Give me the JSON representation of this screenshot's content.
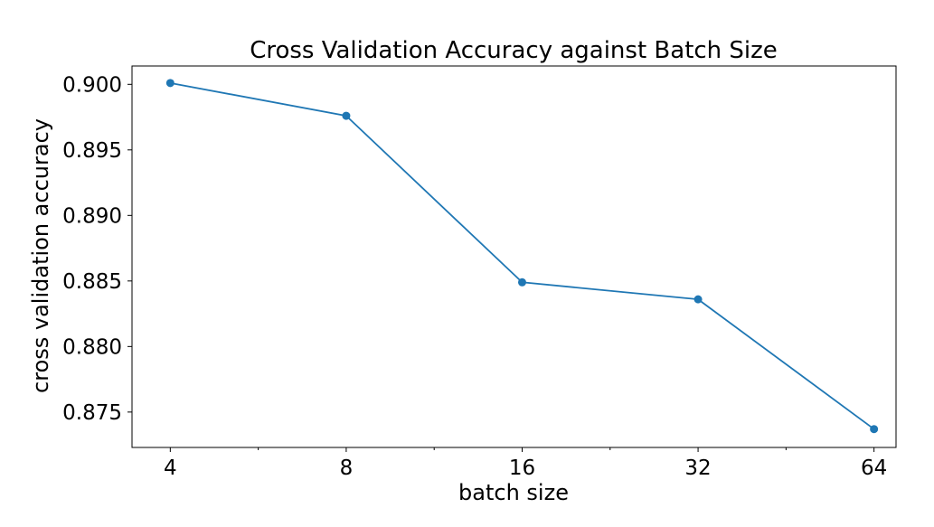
{
  "chart_data": {
    "type": "line",
    "title": "Cross Validation Accuracy against Batch Size",
    "xlabel": "batch size",
    "ylabel": "cross validation accuracy",
    "x_scale": "log2",
    "x_ticks": [
      "4",
      "8",
      "16",
      "32",
      "64"
    ],
    "y_ticks": [
      "0.875",
      "0.880",
      "0.885",
      "0.890",
      "0.895",
      "0.900"
    ],
    "ylim": [
      0.8723,
      0.9014
    ],
    "xlim": [
      3.44,
      69.8
    ],
    "grid": false,
    "legend": "none",
    "series": [
      {
        "color": "#1f77b4",
        "marker": "circle",
        "x": [
          4,
          8,
          16,
          32,
          64
        ],
        "values": [
          0.9001,
          0.8976,
          0.8849,
          0.8836,
          0.8737
        ]
      }
    ]
  }
}
